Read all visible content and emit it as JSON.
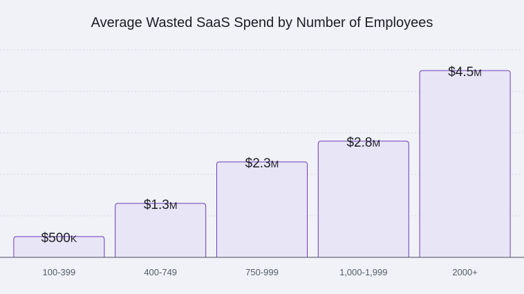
{
  "chart_data": {
    "type": "bar",
    "title": "Average Wasted SaaS Spend by Number of Employees",
    "xlabel": "",
    "ylabel": "",
    "categories": [
      "100-399",
      "400-749",
      "750-999",
      "1,000-1,999",
      "2000+"
    ],
    "values": [
      500000,
      1300000,
      2300000,
      2800000,
      4500000
    ],
    "data_labels": [
      {
        "amount": "$500",
        "suffix": "K"
      },
      {
        "amount": "$1.3",
        "suffix": "M"
      },
      {
        "amount": "$2.3",
        "suffix": "M"
      },
      {
        "amount": "$2.8",
        "suffix": "M"
      },
      {
        "amount": "$4.5",
        "suffix": "M"
      }
    ],
    "ylim": [
      0,
      5000000
    ],
    "grid": true,
    "legend": "none",
    "colors": {
      "bar_fill": "#e8e5f6",
      "bar_stroke": "#6a3bb8",
      "background": "#f0f2f7"
    }
  }
}
